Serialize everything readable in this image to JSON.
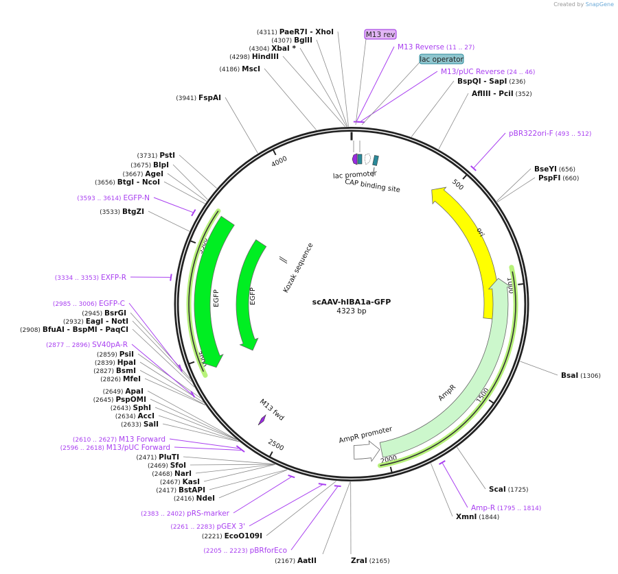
{
  "header": {
    "created_by": "Created by",
    "brand": "SnapGene"
  },
  "plasmid": {
    "name": "scAAV-hIBA1a-GFP",
    "length_label": "4323 bp",
    "length_bp": 4323
  },
  "ticks": [
    500,
    1000,
    1500,
    2000,
    2500,
    3000,
    3500,
    4000
  ],
  "enzymes": [
    {
      "pos": "4311",
      "names": [
        "PaeR7I",
        "XhoI"
      ]
    },
    {
      "pos": "4307",
      "names": [
        "BglII"
      ]
    },
    {
      "pos": "4304",
      "names": [
        "XbaI *"
      ]
    },
    {
      "pos": "4298",
      "names": [
        "HindIII"
      ]
    },
    {
      "pos": "4186",
      "names": [
        "MscI"
      ]
    },
    {
      "pos": "3941",
      "names": [
        "FspAI"
      ]
    },
    {
      "pos": "3731",
      "names": [
        "PstI"
      ]
    },
    {
      "pos": "3675",
      "names": [
        "BlpI"
      ]
    },
    {
      "pos": "3667",
      "names": [
        "AgeI"
      ]
    },
    {
      "pos": "3656",
      "names": [
        "BtgI",
        "NcoI"
      ]
    },
    {
      "pos": "3533",
      "names": [
        "BtgZI"
      ]
    },
    {
      "pos": "2945",
      "names": [
        "BsrGI"
      ]
    },
    {
      "pos": "2932",
      "names": [
        "EagI",
        "NotI"
      ]
    },
    {
      "pos": "2908",
      "names": [
        "BfuAI",
        "BspMI",
        "PaqCI"
      ]
    },
    {
      "pos": "2859",
      "names": [
        "PsiI"
      ]
    },
    {
      "pos": "2839",
      "names": [
        "HpaI"
      ]
    },
    {
      "pos": "2827",
      "names": [
        "BsmI"
      ]
    },
    {
      "pos": "2826",
      "names": [
        "MfeI"
      ]
    },
    {
      "pos": "2649",
      "names": [
        "ApaI"
      ]
    },
    {
      "pos": "2645",
      "names": [
        "PspOMI"
      ]
    },
    {
      "pos": "2643",
      "names": [
        "SphI"
      ]
    },
    {
      "pos": "2634",
      "names": [
        "AccI"
      ]
    },
    {
      "pos": "2633",
      "names": [
        "SalI"
      ]
    },
    {
      "pos": "2471",
      "names": [
        "PluTI"
      ]
    },
    {
      "pos": "2469",
      "names": [
        "SfoI"
      ]
    },
    {
      "pos": "2468",
      "names": [
        "NarI"
      ]
    },
    {
      "pos": "2467",
      "names": [
        "KasI"
      ]
    },
    {
      "pos": "2417",
      "names": [
        "BstAPI"
      ]
    },
    {
      "pos": "2416",
      "names": [
        "NdeI"
      ]
    },
    {
      "pos": "2221",
      "names": [
        "EcoO109I"
      ]
    },
    {
      "pos": "2167",
      "names": [
        "AatII"
      ]
    },
    {
      "pos": "2165",
      "names": [
        "ZraI"
      ]
    },
    {
      "pos": "236",
      "names": [
        "BspQI",
        "SapI"
      ]
    },
    {
      "pos": "352",
      "names": [
        "AflIII",
        "PciI"
      ]
    },
    {
      "pos": "656",
      "names": [
        "BseYI"
      ]
    },
    {
      "pos": "660",
      "names": [
        "PspFI"
      ]
    },
    {
      "pos": "1306",
      "names": [
        "BsaI"
      ]
    },
    {
      "pos": "1725",
      "names": [
        "ScaI"
      ]
    },
    {
      "pos": "1844",
      "names": [
        "XmnI"
      ]
    }
  ],
  "primers": [
    {
      "start": "11",
      "end": "27",
      "name": "M13 Reverse"
    },
    {
      "start": "24",
      "end": "46",
      "name": "M13/pUC Reverse"
    },
    {
      "start": "493",
      "end": "512",
      "name": "pBR322ori-F"
    },
    {
      "start": "1795",
      "end": "1814",
      "name": "Amp-R"
    },
    {
      "start": "3593",
      "end": "3614",
      "name": "EGFP-N"
    },
    {
      "start": "3334",
      "end": "3353",
      "name": "EXFP-R"
    },
    {
      "start": "2985",
      "end": "3006",
      "name": "EGFP-C"
    },
    {
      "start": "2877",
      "end": "2896",
      "name": "SV40pA-R"
    },
    {
      "start": "2610",
      "end": "2627",
      "name": "M13 Forward"
    },
    {
      "start": "2596",
      "end": "2618",
      "name": "M13/pUC Forward"
    },
    {
      "start": "2383",
      "end": "2402",
      "name": "pRS-marker"
    },
    {
      "start": "2261",
      "end": "2283",
      "name": "pGEX 3'"
    },
    {
      "start": "2205",
      "end": "2223",
      "name": "pBRforEco"
    }
  ],
  "feature_tags": [
    {
      "name": "M13 rev",
      "color": "#e2b6f5"
    },
    {
      "name": "lac operator",
      "color": "#8fc6cf"
    }
  ],
  "features": [
    {
      "name": "EGFP",
      "start": 2941,
      "end": 3651,
      "direction": "reverse",
      "color": "#00ee22"
    },
    {
      "name": "EGFP",
      "start": 2941,
      "end": 3651,
      "direction": "reverse",
      "color": "#00ee22"
    },
    {
      "name": "ori",
      "start": 420,
      "end": 1153,
      "direction": "reverse",
      "color": "#ffff00"
    },
    {
      "name": "AmpR",
      "start": 961,
      "end": 2023,
      "direction": "reverse",
      "color": "#ccf7cc"
    },
    {
      "name": "AmpR promoter",
      "start": 2030,
      "end": 2150,
      "direction": "reverse",
      "color": "#ffffff"
    }
  ],
  "small_features": {
    "lac_promoter": "lac promoter",
    "cap_site": "CAP binding site",
    "kozak": "Kozak sequence",
    "m13_fwd": "M13 fwd"
  },
  "colors": {
    "primer": "#a83ef0",
    "backbone": "#222222",
    "highlight": "#b7f27a"
  }
}
